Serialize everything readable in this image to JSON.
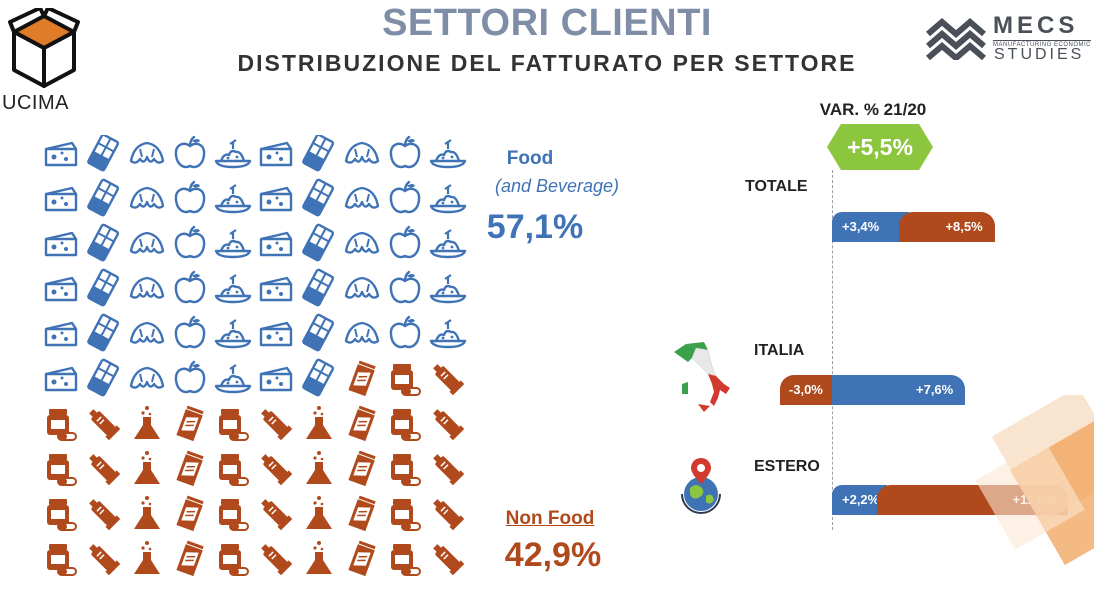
{
  "header": {
    "title": "SETTORI CLIENTI",
    "subtitle": "DISTRIBUZIONE DEL FATTURATO PER SETTORE"
  },
  "logos": {
    "left_text": "UCIMA",
    "right_text": "MECS",
    "right_subtext": "MANUFACTURING ECONOMIC",
    "right_subtext2": "STUDIES"
  },
  "colors": {
    "food": "#3f73b6",
    "nonfood": "#b04a1c",
    "badge": "#8cc63f",
    "title": "#7f8ea6"
  },
  "pictogram": {
    "food_count": 57,
    "nonfood_count": 43,
    "columns": 10,
    "rows": 10,
    "food_icons": [
      "cheese-icon",
      "chocolate-icon",
      "croissant-icon",
      "apple-icon",
      "pasta-icon"
    ],
    "nonfood_icons": [
      "pill-bottle-icon",
      "tube-icon",
      "flask-icon",
      "sachet-icon"
    ]
  },
  "shares": {
    "food_title": "Food",
    "food_sub": "(and Beverage)",
    "food_value": "57,1%",
    "nonfood_title": "Non Food",
    "nonfood_value": "42,9%"
  },
  "variation": {
    "title": "VAR. % 21/20",
    "total_badge": "+5,5%"
  },
  "chart_data": {
    "type": "bar",
    "title": "VAR. % 21/20",
    "categories": [
      "TOTALE",
      "ITALIA",
      "ESTERO"
    ],
    "series": [
      {
        "name": "Food",
        "values": [
          3.4,
          7.6,
          2.2
        ],
        "labels": [
          "+3,4%",
          "+7,6%",
          "+2,2%"
        ]
      },
      {
        "name": "Non Food",
        "values": [
          8.5,
          -3.0,
          11.8
        ],
        "labels": [
          "+8,5%",
          "-3,0%",
          "+11,8%"
        ]
      }
    ]
  }
}
